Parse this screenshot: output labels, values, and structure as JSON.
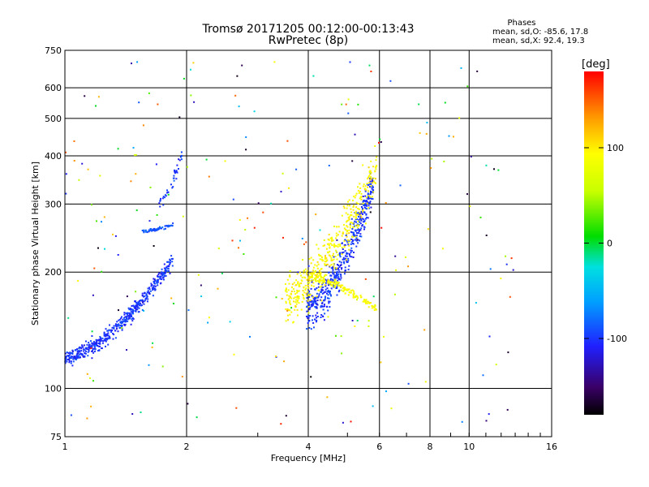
{
  "header": {
    "title_line1": "Tromsø 20171205 00:12:00-00:13:43",
    "title_line2": "RwPretec (8p)",
    "phases_label": "Phases",
    "phases_o": "mean, sd,O: -85.6, 17.8",
    "phases_x": "mean, sd,X:  92.4, 19.3"
  },
  "colorbar": {
    "unit_label": "[deg]",
    "ticks": [
      "100",
      "0",
      "-100"
    ],
    "tick_values": [
      100,
      0,
      -100
    ],
    "range": [
      -180,
      180
    ]
  },
  "chart_data": {
    "type": "scatter",
    "title": "Tromsø 20171205 00:12:00-00:13:43",
    "subtitle": "RwPretec (8p)",
    "xlabel": "Frequency [MHz]",
    "ylabel": "Stationary phase Virtual Height [km]",
    "xscale": "log",
    "yscale": "log",
    "xlim": [
      1,
      16
    ],
    "ylim": [
      75,
      750
    ],
    "x_ticks": [
      1,
      2,
      4,
      6,
      8,
      10,
      16
    ],
    "x_tick_labels": [
      "1",
      "2",
      "4",
      "6",
      "8",
      "10",
      "16"
    ],
    "y_ticks": [
      75,
      100,
      200,
      300,
      400,
      500,
      600,
      750
    ],
    "y_tick_labels": [
      "75",
      "100",
      "200",
      "300",
      "400",
      "500",
      "600",
      "750"
    ],
    "grid": true,
    "color_scale": "phase [deg], rainbow from -180 (black/purple) to 180 (red)",
    "clusters": [
      {
        "name": "low-band-curve",
        "x_range": [
          1.0,
          1.85
        ],
        "y_start": 120,
        "y_end": 215,
        "phase": -100,
        "count": 520,
        "spread": 0.09
      },
      {
        "name": "low-band-upper",
        "x_range": [
          1.55,
          1.85
        ],
        "y_start": 255,
        "y_end": 265,
        "phase": -90,
        "count": 70,
        "spread": 0.02
      },
      {
        "name": "low-band-high",
        "x_range": [
          1.7,
          1.95
        ],
        "y_start": 300,
        "y_end": 405,
        "phase": -100,
        "count": 40,
        "spread": 0.08
      },
      {
        "name": "f-trace-o",
        "x_range": [
          3.95,
          5.8
        ],
        "y_start": 160,
        "y_end": 340,
        "phase": -100,
        "count": 480,
        "spread": 0.25
      },
      {
        "name": "f-trace-x",
        "x_range": [
          3.5,
          5.9
        ],
        "y_start": 170,
        "y_end": 380,
        "phase": 95,
        "count": 420,
        "spread": 0.3
      },
      {
        "name": "f-trace-lower-x",
        "x_range": [
          4.0,
          5.9
        ],
        "y_start": 195,
        "y_end": 160,
        "phase": 90,
        "count": 150,
        "spread": 0.05
      },
      {
        "name": "scattered-noise",
        "x_range": [
          1.0,
          13.0
        ],
        "y_start": 80,
        "y_end": 720,
        "phase": 0,
        "count": 230,
        "spread": 1.0
      }
    ]
  }
}
